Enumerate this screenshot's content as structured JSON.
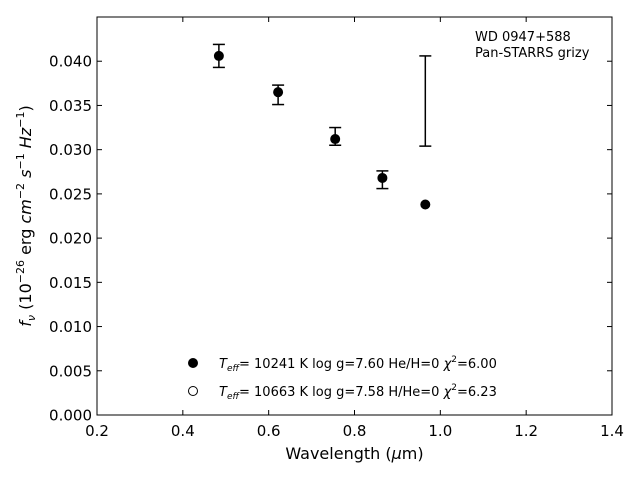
{
  "chart_data": {
    "type": "scatter",
    "xlabel_main": "Wavelength (",
    "xlabel_sym": "μ",
    "xlabel_rest": "m)",
    "ylabel": "f_ν (10^-26 erg cm^-2 s^-1 Hz^-1)",
    "xlim": [
      0.2,
      1.4
    ],
    "ylim": [
      0.0,
      0.045
    ],
    "x_ticks": [
      0.2,
      0.4,
      0.6,
      0.8,
      1.0,
      1.2,
      1.4
    ],
    "x_tick_labels": [
      "0.2",
      "0.4",
      "0.6",
      "0.8",
      "1.0",
      "1.2",
      "1.4"
    ],
    "y_ticks": [
      0.0,
      0.005,
      0.01,
      0.015,
      0.02,
      0.025,
      0.03,
      0.035,
      0.04
    ],
    "y_tick_labels": [
      "0.000",
      "0.005",
      "0.010",
      "0.015",
      "0.020",
      "0.025",
      "0.030",
      "0.035",
      "0.040"
    ],
    "annotation": [
      "WD 0947+588",
      "Pan-STARRS grizy"
    ],
    "observed": [
      {
        "x": 0.484,
        "y": 0.0406,
        "err": 0.0013
      },
      {
        "x": 0.622,
        "y": 0.0362,
        "err": 0.0011
      },
      {
        "x": 0.755,
        "y": 0.0315,
        "err": 0.001
      },
      {
        "x": 0.865,
        "y": 0.0266,
        "err": 0.001
      },
      {
        "x": 0.965,
        "y": 0.0355,
        "err": 0.0051
      }
    ],
    "series": [
      {
        "marker": "filled",
        "label_teff": "= 10241 K  log g=7.60  He/H=0  ",
        "label_chi": "=6.00",
        "points": [
          {
            "x": 0.484,
            "y": 0.0406
          },
          {
            "x": 0.622,
            "y": 0.0365
          },
          {
            "x": 0.755,
            "y": 0.0312
          },
          {
            "x": 0.865,
            "y": 0.0268
          },
          {
            "x": 0.965,
            "y": 0.0238
          }
        ]
      },
      {
        "marker": "open",
        "label_teff": "= 10663 K  log g=7.58  H/He=0  ",
        "label_chi": "=6.23",
        "points": []
      }
    ]
  }
}
